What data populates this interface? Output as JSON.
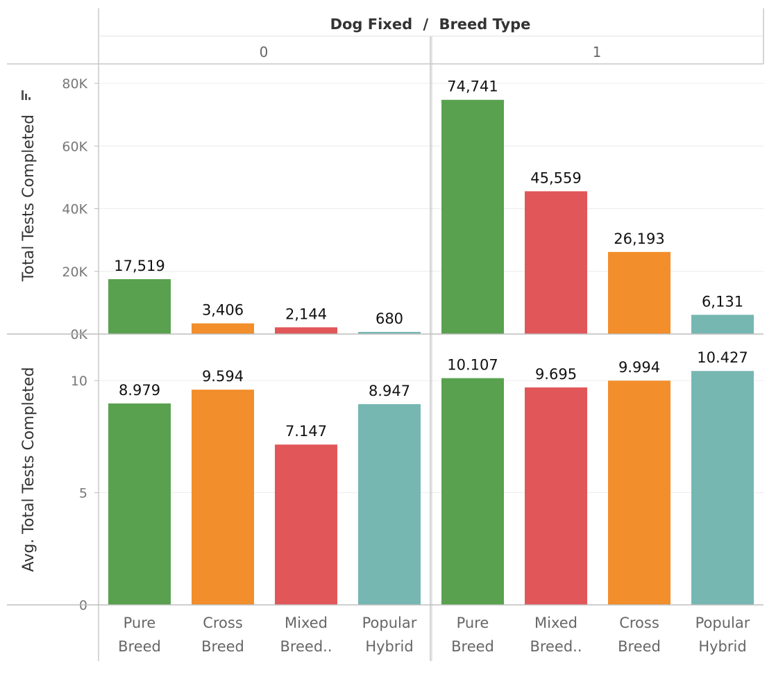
{
  "header": {
    "title_left": "Dog Fixed",
    "separator": "/",
    "title_right": "Breed Type",
    "panels": [
      "0",
      "1"
    ]
  },
  "colors": {
    "Pure Breed": "#59A14F",
    "Cross Breed": "#F28E2B",
    "Mixed Breed..": "#E15759",
    "Popular Hybrid": "#76B7B2"
  },
  "legend_icon": "sort-icon",
  "chart_data": [
    {
      "type": "bar",
      "ylabel": "Total Tests Completed",
      "yticks": [
        "0K",
        "20K",
        "40K",
        "60K",
        "80K"
      ],
      "ytick_values": [
        0,
        20000,
        40000,
        60000,
        80000
      ],
      "ylim": [
        0,
        80000
      ],
      "grid": true,
      "panels": [
        {
          "dog_fixed": "0",
          "categories": [
            "Pure Breed",
            "Cross Breed",
            "Mixed Breed..",
            "Popular Hybrid"
          ],
          "values": [
            17519,
            3406,
            2144,
            680
          ],
          "labels": [
            "17,519",
            "3,406",
            "2,144",
            "680"
          ]
        },
        {
          "dog_fixed": "1",
          "categories": [
            "Pure Breed",
            "Mixed Breed..",
            "Cross Breed",
            "Popular Hybrid"
          ],
          "values": [
            74741,
            45559,
            26193,
            6131
          ],
          "labels": [
            "74,741",
            "45,559",
            "26,193",
            "6,131"
          ]
        }
      ]
    },
    {
      "type": "bar",
      "ylabel": "Avg. Total Tests Completed",
      "yticks": [
        "0",
        "5",
        "10"
      ],
      "ytick_values": [
        0,
        5,
        10
      ],
      "ylim": [
        0,
        10.5
      ],
      "grid": true,
      "panels": [
        {
          "dog_fixed": "0",
          "categories": [
            "Pure Breed",
            "Cross Breed",
            "Mixed Breed..",
            "Popular Hybrid"
          ],
          "values": [
            8.979,
            9.594,
            7.147,
            8.947
          ],
          "labels": [
            "8.979",
            "9.594",
            "7.147",
            "8.947"
          ]
        },
        {
          "dog_fixed": "1",
          "categories": [
            "Pure Breed",
            "Mixed Breed..",
            "Cross Breed",
            "Popular Hybrid"
          ],
          "values": [
            10.107,
            9.695,
            9.994,
            10.427
          ],
          "labels": [
            "10.107",
            "9.695",
            "9.994",
            "10.427"
          ]
        }
      ]
    }
  ],
  "x_axis": {
    "panels": [
      [
        [
          "Pure",
          "Breed"
        ],
        [
          "Cross",
          "Breed"
        ],
        [
          "Mixed",
          "Breed.."
        ],
        [
          "Popular",
          "Hybrid"
        ]
      ],
      [
        [
          "Pure",
          "Breed"
        ],
        [
          "Mixed",
          "Breed.."
        ],
        [
          "Cross",
          "Breed"
        ],
        [
          "Popular",
          "Hybrid"
        ]
      ]
    ]
  }
}
